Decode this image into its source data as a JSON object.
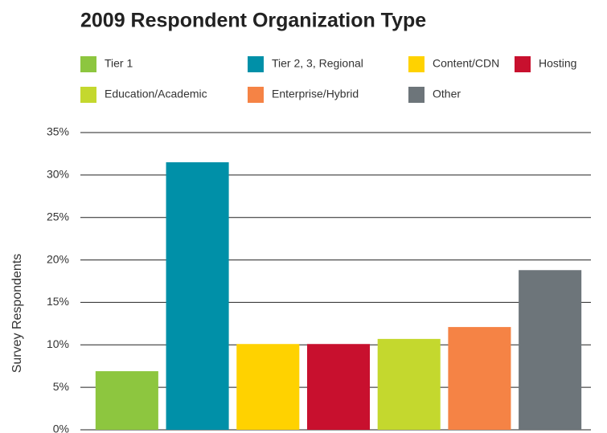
{
  "chart_data": {
    "type": "bar",
    "title": "2009 Respondent Organization Type",
    "y_label": "Survey Respondents",
    "categories": [
      "Tier 1",
      "Tier 2, 3, Regional",
      "Content/CDN",
      "Hosting",
      "Education/Academic",
      "Enterprise/Hybrid",
      "Other"
    ],
    "values": [
      6.9,
      31.5,
      10.1,
      10.1,
      10.7,
      12.1,
      18.8
    ],
    "colors": [
      "#8dc63f",
      "#0090a8",
      "#ffd200",
      "#c8102e",
      "#c4d82e",
      "#f58345",
      "#6d757a"
    ],
    "ylim": [
      0,
      35
    ],
    "yticks": [
      {
        "value": 0,
        "label": "0%"
      },
      {
        "value": 5,
        "label": "5%"
      },
      {
        "value": 10,
        "label": "10%"
      },
      {
        "value": 15,
        "label": "15%"
      },
      {
        "value": 20,
        "label": "20%"
      },
      {
        "value": 25,
        "label": "25%"
      },
      {
        "value": 30,
        "label": "30%"
      },
      {
        "value": 35,
        "label": "35%"
      }
    ],
    "grid": true,
    "legend": "top"
  }
}
